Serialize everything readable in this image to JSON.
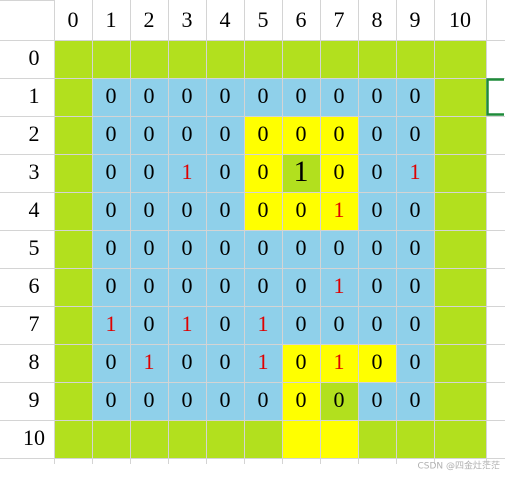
{
  "sheet": {
    "column_headers": [
      "0",
      "1",
      "2",
      "3",
      "4",
      "5",
      "6",
      "7",
      "8",
      "9",
      "10"
    ],
    "row_headers": [
      "0",
      "1",
      "2",
      "3",
      "4",
      "5",
      "6",
      "7",
      "8",
      "9",
      "10"
    ],
    "cells": [
      [
        null,
        null,
        null,
        null,
        null,
        null,
        null,
        null,
        null,
        null,
        null
      ],
      [
        null,
        0,
        0,
        0,
        0,
        0,
        0,
        0,
        0,
        0,
        null
      ],
      [
        null,
        0,
        0,
        0,
        0,
        0,
        0,
        0,
        0,
        0,
        null
      ],
      [
        null,
        0,
        0,
        1,
        0,
        0,
        1,
        0,
        0,
        1,
        null
      ],
      [
        null,
        0,
        0,
        0,
        0,
        0,
        0,
        1,
        0,
        0,
        null
      ],
      [
        null,
        0,
        0,
        0,
        0,
        0,
        0,
        0,
        0,
        0,
        null
      ],
      [
        null,
        0,
        0,
        0,
        0,
        0,
        0,
        1,
        0,
        0,
        null
      ],
      [
        null,
        1,
        0,
        1,
        0,
        1,
        0,
        0,
        0,
        0,
        null
      ],
      [
        null,
        0,
        1,
        0,
        0,
        1,
        0,
        1,
        0,
        0,
        null
      ],
      [
        null,
        0,
        0,
        0,
        0,
        0,
        0,
        0,
        0,
        0,
        null
      ],
      [
        null,
        null,
        null,
        null,
        null,
        null,
        null,
        null,
        null,
        null,
        null
      ]
    ],
    "fills": [
      [
        "#b2e01e",
        "#b2e01e",
        "#b2e01e",
        "#b2e01e",
        "#b2e01e",
        "#b2e01e",
        "#b2e01e",
        "#b2e01e",
        "#b2e01e",
        "#b2e01e",
        "#b2e01e"
      ],
      [
        "#b2e01e",
        "#8fd0ea",
        "#8fd0ea",
        "#8fd0ea",
        "#8fd0ea",
        "#8fd0ea",
        "#8fd0ea",
        "#8fd0ea",
        "#8fd0ea",
        "#8fd0ea",
        "#b2e01e"
      ],
      [
        "#b2e01e",
        "#8fd0ea",
        "#8fd0ea",
        "#8fd0ea",
        "#8fd0ea",
        "#ffff00",
        "#ffff00",
        "#ffff00",
        "#8fd0ea",
        "#8fd0ea",
        "#b2e01e"
      ],
      [
        "#b2e01e",
        "#8fd0ea",
        "#8fd0ea",
        "#8fd0ea",
        "#8fd0ea",
        "#ffff00",
        "#b2e01e",
        "#ffff00",
        "#8fd0ea",
        "#8fd0ea",
        "#b2e01e"
      ],
      [
        "#b2e01e",
        "#8fd0ea",
        "#8fd0ea",
        "#8fd0ea",
        "#8fd0ea",
        "#ffff00",
        "#ffff00",
        "#ffff00",
        "#8fd0ea",
        "#8fd0ea",
        "#b2e01e"
      ],
      [
        "#b2e01e",
        "#8fd0ea",
        "#8fd0ea",
        "#8fd0ea",
        "#8fd0ea",
        "#8fd0ea",
        "#8fd0ea",
        "#8fd0ea",
        "#8fd0ea",
        "#8fd0ea",
        "#b2e01e"
      ],
      [
        "#b2e01e",
        "#8fd0ea",
        "#8fd0ea",
        "#8fd0ea",
        "#8fd0ea",
        "#8fd0ea",
        "#8fd0ea",
        "#8fd0ea",
        "#8fd0ea",
        "#8fd0ea",
        "#b2e01e"
      ],
      [
        "#b2e01e",
        "#8fd0ea",
        "#8fd0ea",
        "#8fd0ea",
        "#8fd0ea",
        "#8fd0ea",
        "#8fd0ea",
        "#8fd0ea",
        "#8fd0ea",
        "#8fd0ea",
        "#b2e01e"
      ],
      [
        "#b2e01e",
        "#8fd0ea",
        "#8fd0ea",
        "#8fd0ea",
        "#8fd0ea",
        "#8fd0ea",
        "#ffff00",
        "#ffff00",
        "#ffff00",
        "#8fd0ea",
        "#b2e01e"
      ],
      [
        "#b2e01e",
        "#8fd0ea",
        "#8fd0ea",
        "#8fd0ea",
        "#8fd0ea",
        "#8fd0ea",
        "#ffff00",
        "#b2e01e",
        "#8fd0ea",
        "#8fd0ea",
        "#b2e01e"
      ],
      [
        "#b2e01e",
        "#b2e01e",
        "#b2e01e",
        "#b2e01e",
        "#b2e01e",
        "#b2e01e",
        "#ffff00",
        "#ffff00",
        "#b2e01e",
        "#b2e01e",
        "#b2e01e"
      ]
    ],
    "red_text_cells": [
      [
        3,
        3
      ],
      [
        3,
        9
      ],
      [
        4,
        7
      ],
      [
        6,
        7
      ],
      [
        7,
        1
      ],
      [
        7,
        3
      ],
      [
        7,
        5
      ],
      [
        8,
        2
      ],
      [
        8,
        5
      ],
      [
        8,
        7
      ]
    ],
    "large_text_cells": [
      [
        3,
        6
      ]
    ],
    "text_color": "#000000",
    "highlight_text_color": "#e00000",
    "watermark": "CSDN @四金灶茫茫"
  }
}
